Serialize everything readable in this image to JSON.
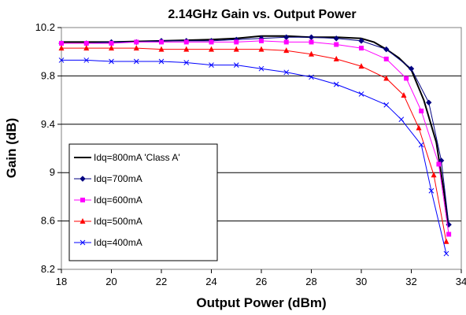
{
  "chart_data": {
    "type": "line",
    "title": "2.14GHz Gain vs. Output Power",
    "xlabel": "Output Power (dBm)",
    "ylabel": "Gain (dB)",
    "xlim": [
      18,
      34
    ],
    "ylim": [
      8.2,
      10.2
    ],
    "xticks": [
      "18",
      "20",
      "22",
      "24",
      "26",
      "28",
      "30",
      "32",
      "34"
    ],
    "yticks": [
      "8.2",
      "8.6",
      "9",
      "9.4",
      "9.8",
      "10.2"
    ],
    "xtick_values": [
      18,
      20,
      22,
      24,
      26,
      28,
      30,
      32,
      34
    ],
    "ytick_values": [
      8.2,
      8.6,
      9.0,
      9.4,
      9.8,
      10.2
    ],
    "grid": "horizontal",
    "legend_position": "bottom-left",
    "series": [
      {
        "name": "Idq=800mA 'Class A'",
        "color": "#000000",
        "marker": "none",
        "x": [
          18,
          20,
          22,
          24,
          25,
          26,
          27,
          28,
          29,
          30,
          30.5,
          31,
          31.5,
          32,
          32.5,
          33,
          33.3,
          33.5
        ],
        "y": [
          10.08,
          10.08,
          10.09,
          10.1,
          10.11,
          10.13,
          10.13,
          10.12,
          10.12,
          10.11,
          10.08,
          10.02,
          9.95,
          9.85,
          9.6,
          9.25,
          8.85,
          8.55
        ]
      },
      {
        "name": "Idq=700mA",
        "color": "#000080",
        "marker": "diamond",
        "x": [
          18,
          19,
          20,
          21,
          22,
          23,
          24,
          25,
          26,
          27,
          28,
          29,
          30,
          31,
          32,
          32.7,
          33.2,
          33.5
        ],
        "y": [
          10.07,
          10.07,
          10.08,
          10.08,
          10.09,
          10.09,
          10.09,
          10.1,
          10.11,
          10.12,
          10.12,
          10.11,
          10.09,
          10.02,
          9.86,
          9.58,
          9.1,
          8.57
        ]
      },
      {
        "name": "Idq=600mA",
        "color": "#ff00ff",
        "marker": "square",
        "x": [
          18,
          19,
          20,
          21,
          22,
          23,
          24,
          25,
          26,
          27,
          28,
          29,
          30,
          31,
          31.8,
          32.4,
          33.1,
          33.5
        ],
        "y": [
          10.07,
          10.07,
          10.07,
          10.08,
          10.08,
          10.08,
          10.08,
          10.08,
          10.09,
          10.08,
          10.08,
          10.06,
          10.03,
          9.94,
          9.78,
          9.51,
          9.07,
          8.49
        ]
      },
      {
        "name": "Idq=500mA",
        "color": "#ff0000",
        "marker": "triangle",
        "x": [
          18,
          19,
          20,
          21,
          22,
          23,
          24,
          25,
          26,
          27,
          28,
          29,
          30,
          31,
          31.7,
          32.3,
          32.9,
          33.4
        ],
        "y": [
          10.03,
          10.03,
          10.03,
          10.03,
          10.02,
          10.02,
          10.02,
          10.02,
          10.02,
          10.01,
          9.98,
          9.94,
          9.88,
          9.78,
          9.64,
          9.37,
          8.98,
          8.43
        ]
      },
      {
        "name": "Idq=400mA",
        "color": "#0000ff",
        "marker": "x",
        "x": [
          18,
          19,
          20,
          21,
          22,
          23,
          24,
          25,
          26,
          27,
          28,
          29,
          30,
          31,
          31.6,
          32.4,
          32.8,
          33.4
        ],
        "y": [
          9.93,
          9.93,
          9.92,
          9.92,
          9.92,
          9.91,
          9.89,
          9.89,
          9.86,
          9.83,
          9.79,
          9.73,
          9.65,
          9.56,
          9.44,
          9.23,
          8.85,
          8.33
        ]
      }
    ]
  }
}
